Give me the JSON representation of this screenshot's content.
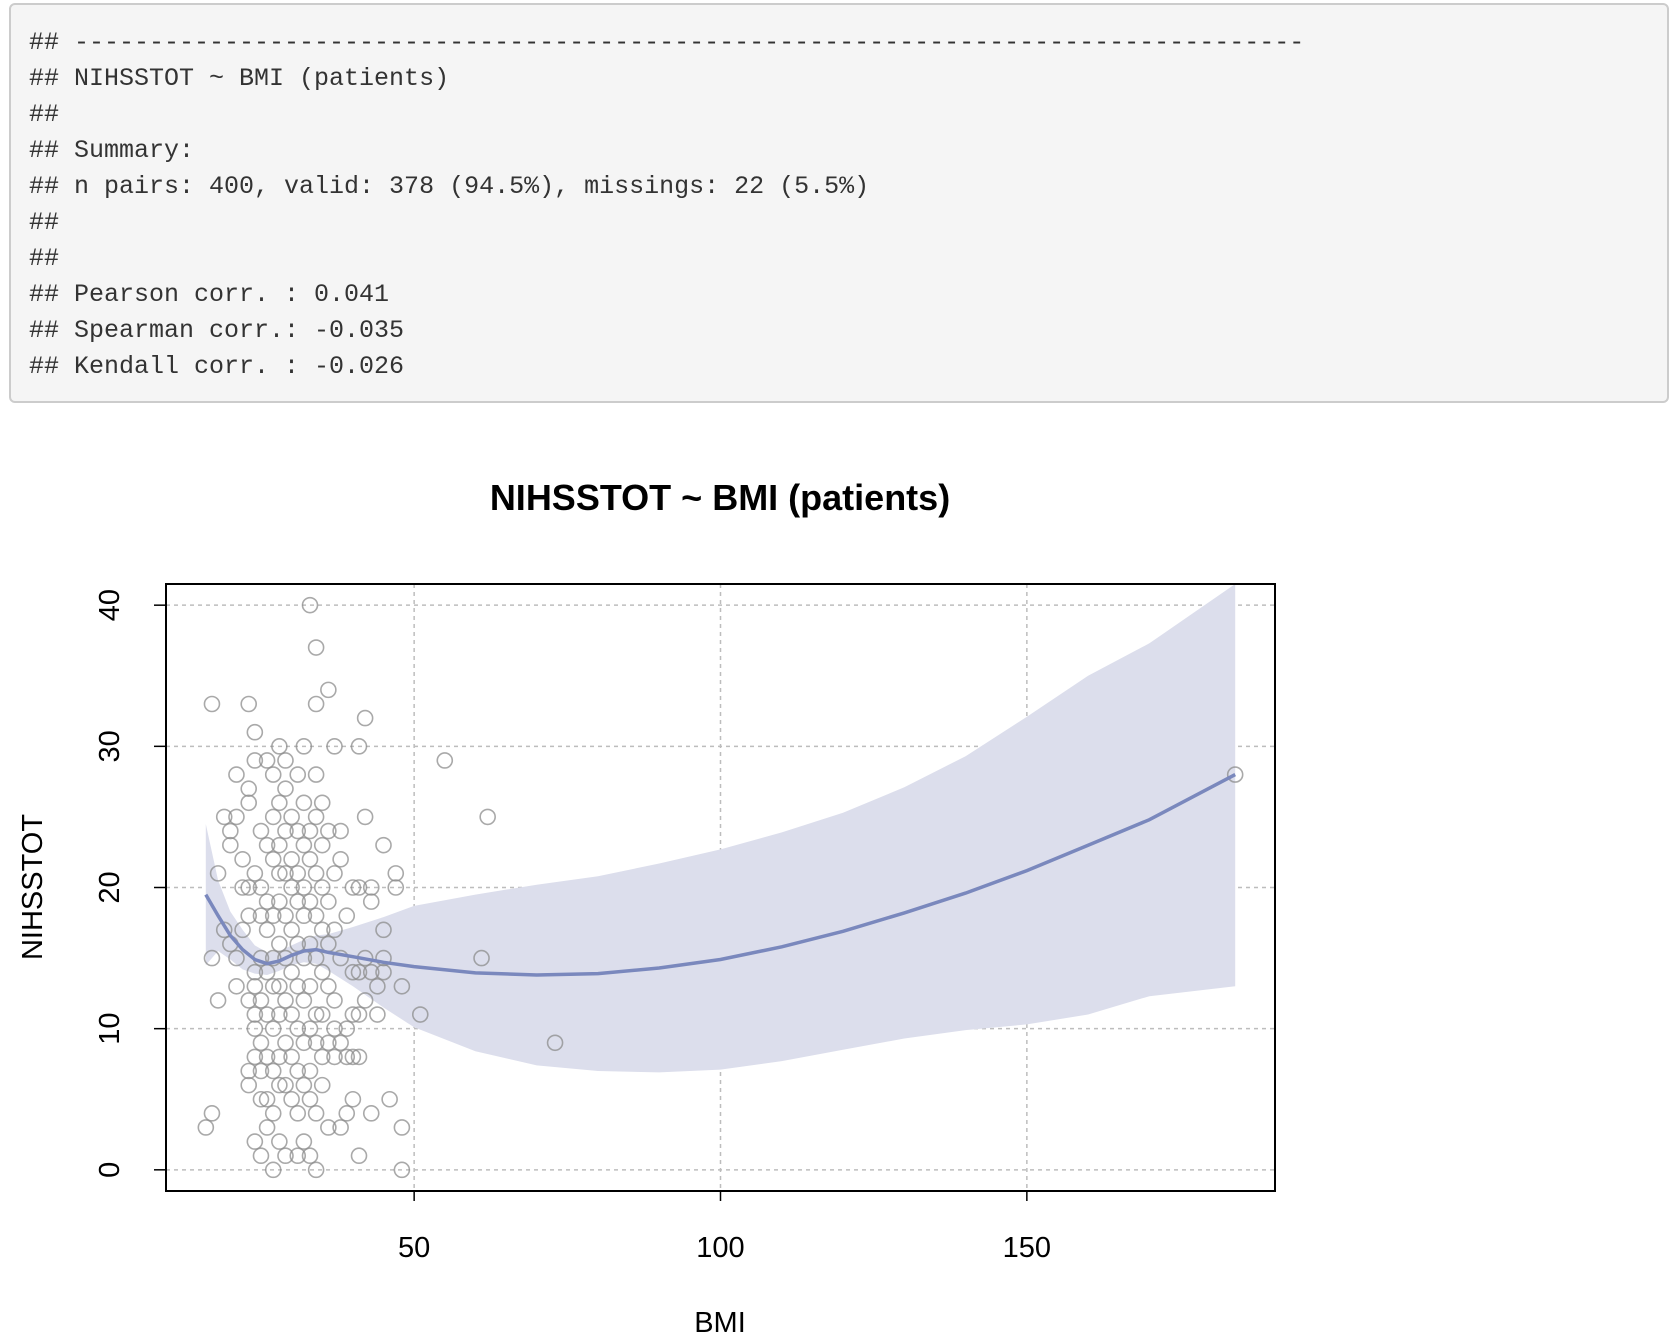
{
  "console": {
    "lines": [
      "## ----------------------------------------------------------------------------------",
      "## NIHSSTOT ~ BMI (patients)",
      "##",
      "## Summary:",
      "## n pairs: 400, valid: 378 (94.5%), missings: 22 (5.5%)",
      "##",
      "##",
      "## Pearson corr. : 0.041",
      "## Spearman corr.: -0.035",
      "## Kendall corr. : -0.026"
    ]
  },
  "chart_data": {
    "type": "scatter",
    "title": "NIHSSTOT ~ BMI (patients)",
    "xlabel": "BMI",
    "ylabel": "NIHSSTOT",
    "xlim": [
      9.5,
      190.5
    ],
    "ylim": [
      -1.5,
      41.5
    ],
    "xticks": [
      50,
      100,
      150
    ],
    "yticks": [
      0,
      10,
      20,
      30,
      40
    ],
    "grid": true,
    "colors": {
      "points": "#8c8c8c",
      "smooth": "#7a88bd",
      "band": "#dcdeec"
    },
    "points": [
      [
        16,
        3
      ],
      [
        17,
        4
      ],
      [
        17,
        15
      ],
      [
        17,
        33
      ],
      [
        18,
        12
      ],
      [
        18,
        21
      ],
      [
        19,
        17
      ],
      [
        19,
        25
      ],
      [
        20,
        23
      ],
      [
        20,
        24
      ],
      [
        20,
        16
      ],
      [
        21,
        15
      ],
      [
        21,
        13
      ],
      [
        21,
        28
      ],
      [
        21,
        25
      ],
      [
        22,
        20
      ],
      [
        22,
        17
      ],
      [
        22,
        22
      ],
      [
        23,
        20
      ],
      [
        23,
        33
      ],
      [
        23,
        27
      ],
      [
        23,
        26
      ],
      [
        23,
        18
      ],
      [
        23,
        12
      ],
      [
        23,
        7
      ],
      [
        23,
        6
      ],
      [
        24,
        31
      ],
      [
        24,
        29
      ],
      [
        24,
        21
      ],
      [
        24,
        14
      ],
      [
        24,
        11
      ],
      [
        24,
        8
      ],
      [
        24,
        2
      ],
      [
        24,
        13
      ],
      [
        24,
        10
      ],
      [
        25,
        24
      ],
      [
        25,
        20
      ],
      [
        25,
        18
      ],
      [
        25,
        15
      ],
      [
        25,
        12
      ],
      [
        25,
        9
      ],
      [
        25,
        7
      ],
      [
        25,
        5
      ],
      [
        25,
        1
      ],
      [
        26,
        29
      ],
      [
        26,
        23
      ],
      [
        26,
        19
      ],
      [
        26,
        17
      ],
      [
        26,
        14
      ],
      [
        26,
        11
      ],
      [
        26,
        8
      ],
      [
        26,
        5
      ],
      [
        26,
        3
      ],
      [
        27,
        28
      ],
      [
        27,
        25
      ],
      [
        27,
        22
      ],
      [
        27,
        18
      ],
      [
        27,
        15
      ],
      [
        27,
        13
      ],
      [
        27,
        10
      ],
      [
        27,
        7
      ],
      [
        27,
        4
      ],
      [
        27,
        0
      ],
      [
        28,
        30
      ],
      [
        28,
        26
      ],
      [
        28,
        23
      ],
      [
        28,
        21
      ],
      [
        28,
        19
      ],
      [
        28,
        16
      ],
      [
        28,
        13
      ],
      [
        28,
        11
      ],
      [
        28,
        8
      ],
      [
        28,
        6
      ],
      [
        28,
        2
      ],
      [
        29,
        29
      ],
      [
        29,
        27
      ],
      [
        29,
        24
      ],
      [
        29,
        21
      ],
      [
        29,
        18
      ],
      [
        29,
        15
      ],
      [
        29,
        12
      ],
      [
        29,
        9
      ],
      [
        29,
        6
      ],
      [
        29,
        1
      ],
      [
        30,
        25
      ],
      [
        30,
        22
      ],
      [
        30,
        20
      ],
      [
        30,
        17
      ],
      [
        30,
        14
      ],
      [
        30,
        11
      ],
      [
        30,
        8
      ],
      [
        30,
        5
      ],
      [
        31,
        28
      ],
      [
        31,
        24
      ],
      [
        31,
        21
      ],
      [
        31,
        19
      ],
      [
        31,
        16
      ],
      [
        31,
        13
      ],
      [
        31,
        10
      ],
      [
        31,
        7
      ],
      [
        31,
        4
      ],
      [
        31,
        1
      ],
      [
        32,
        30
      ],
      [
        32,
        26
      ],
      [
        32,
        23
      ],
      [
        32,
        20
      ],
      [
        32,
        18
      ],
      [
        32,
        15
      ],
      [
        32,
        12
      ],
      [
        32,
        9
      ],
      [
        32,
        6
      ],
      [
        32,
        2
      ],
      [
        33,
        40
      ],
      [
        33,
        24
      ],
      [
        33,
        22
      ],
      [
        33,
        19
      ],
      [
        33,
        16
      ],
      [
        33,
        13
      ],
      [
        33,
        10
      ],
      [
        33,
        7
      ],
      [
        33,
        5
      ],
      [
        33,
        1
      ],
      [
        34,
        37
      ],
      [
        34,
        33
      ],
      [
        34,
        28
      ],
      [
        34,
        25
      ],
      [
        34,
        21
      ],
      [
        34,
        18
      ],
      [
        34,
        15
      ],
      [
        34,
        11
      ],
      [
        34,
        9
      ],
      [
        34,
        4
      ],
      [
        34,
        0
      ],
      [
        35,
        26
      ],
      [
        35,
        23
      ],
      [
        35,
        20
      ],
      [
        35,
        17
      ],
      [
        35,
        14
      ],
      [
        35,
        11
      ],
      [
        35,
        8
      ],
      [
        35,
        6
      ],
      [
        36,
        34
      ],
      [
        36,
        24
      ],
      [
        36,
        19
      ],
      [
        36,
        16
      ],
      [
        36,
        13
      ],
      [
        36,
        9
      ],
      [
        36,
        3
      ],
      [
        37,
        30
      ],
      [
        37,
        21
      ],
      [
        37,
        17
      ],
      [
        37,
        12
      ],
      [
        37,
        10
      ],
      [
        37,
        8
      ],
      [
        38,
        24
      ],
      [
        38,
        22
      ],
      [
        38,
        15
      ],
      [
        38,
        9
      ],
      [
        38,
        3
      ],
      [
        39,
        18
      ],
      [
        39,
        10
      ],
      [
        39,
        8
      ],
      [
        39,
        4
      ],
      [
        40,
        20
      ],
      [
        40,
        14
      ],
      [
        40,
        11
      ],
      [
        40,
        8
      ],
      [
        40,
        5
      ],
      [
        41,
        30
      ],
      [
        41,
        20
      ],
      [
        41,
        14
      ],
      [
        41,
        11
      ],
      [
        41,
        8
      ],
      [
        41,
        1
      ],
      [
        42,
        25
      ],
      [
        42,
        32
      ],
      [
        42,
        15
      ],
      [
        42,
        12
      ],
      [
        43,
        20
      ],
      [
        43,
        19
      ],
      [
        43,
        14
      ],
      [
        43,
        4
      ],
      [
        44,
        13
      ],
      [
        44,
        11
      ],
      [
        45,
        23
      ],
      [
        45,
        17
      ],
      [
        45,
        15
      ],
      [
        45,
        14
      ],
      [
        46,
        5
      ],
      [
        47,
        20
      ],
      [
        47,
        21
      ],
      [
        48,
        13
      ],
      [
        48,
        3
      ],
      [
        48,
        0
      ],
      [
        51,
        11
      ],
      [
        55,
        29
      ],
      [
        61,
        15
      ],
      [
        62,
        25
      ],
      [
        73,
        9
      ],
      [
        184,
        28
      ]
    ],
    "smooth": {
      "x": [
        16,
        18,
        20,
        22,
        24,
        26,
        28,
        30,
        32,
        34,
        36,
        40,
        45,
        50,
        60,
        70,
        80,
        90,
        100,
        110,
        120,
        130,
        140,
        150,
        160,
        170,
        184
      ],
      "y": [
        19.5,
        18,
        16.6,
        15.6,
        14.9,
        14.6,
        14.8,
        15.2,
        15.5,
        15.6,
        15.4,
        15.1,
        14.7,
        14.4,
        13.95,
        13.8,
        13.9,
        14.3,
        14.9,
        15.8,
        16.9,
        18.2,
        19.6,
        21.2,
        23,
        24.8,
        28
      ],
      "lower": [
        14.5,
        15.5,
        14.9,
        14.2,
        13.9,
        13.8,
        14.1,
        14.5,
        14.7,
        14.6,
        14.1,
        13,
        11.5,
        10.1,
        8.4,
        7.4,
        7,
        6.9,
        7.1,
        7.7,
        8.5,
        9.3,
        9.9,
        10.3,
        11,
        12.3,
        13
      ]
    }
  }
}
